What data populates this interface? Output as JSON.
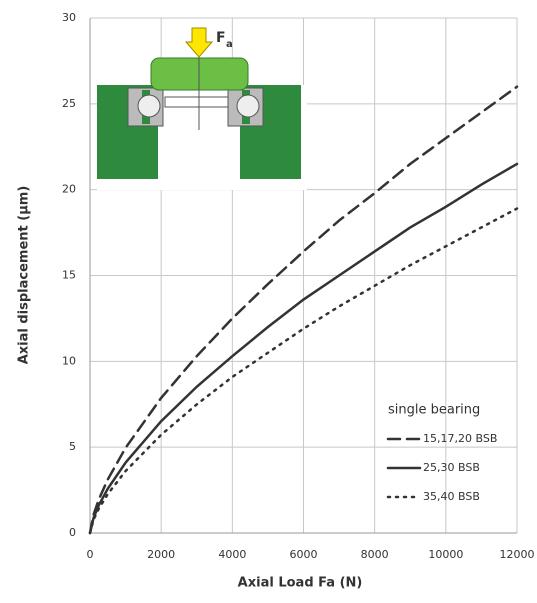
{
  "chart_data": {
    "type": "line",
    "x_label": "Axial Load Fa (N)",
    "y_label": "Axial displacement (µm)",
    "force_label": "F",
    "force_label_subscript": "a",
    "legend_title": "single bearing",
    "legend_position": "lower right",
    "grid": true,
    "xlim": [
      0,
      12000
    ],
    "xticks": [
      0,
      2000,
      4000,
      6000,
      8000,
      10000,
      12000
    ],
    "ylim": [
      0,
      30
    ],
    "yticks": [
      0,
      5,
      10,
      15,
      20,
      25,
      30
    ],
    "x": [
      0,
      100,
      250,
      500,
      1000,
      2000,
      3000,
      4000,
      5000,
      6000,
      7000,
      8000,
      9000,
      10000,
      11000,
      12000
    ],
    "series": [
      {
        "name": "15,17,20 BSB",
        "color": "#333333",
        "dash": "dashed",
        "values": [
          0,
          1.07,
          1.97,
          3.12,
          4.96,
          7.87,
          10.3,
          12.5,
          14.5,
          16.4,
          18.2,
          19.8,
          21.5,
          23.0,
          24.5,
          26.0
        ]
      },
      {
        "name": "25,30 BSB",
        "color": "#333333",
        "dash": "solid",
        "values": [
          0,
          0.88,
          1.63,
          2.58,
          4.1,
          6.51,
          8.52,
          10.3,
          12.0,
          13.6,
          15.0,
          16.4,
          17.8,
          19.0,
          20.3,
          21.5
        ]
      },
      {
        "name": "35,40 BSB",
        "color": "#333333",
        "dash": "dotted",
        "values": [
          0,
          0.78,
          1.43,
          2.27,
          3.61,
          5.72,
          7.49,
          9.09,
          10.5,
          11.9,
          13.2,
          14.4,
          15.6,
          16.7,
          17.8,
          18.9
        ]
      }
    ]
  }
}
